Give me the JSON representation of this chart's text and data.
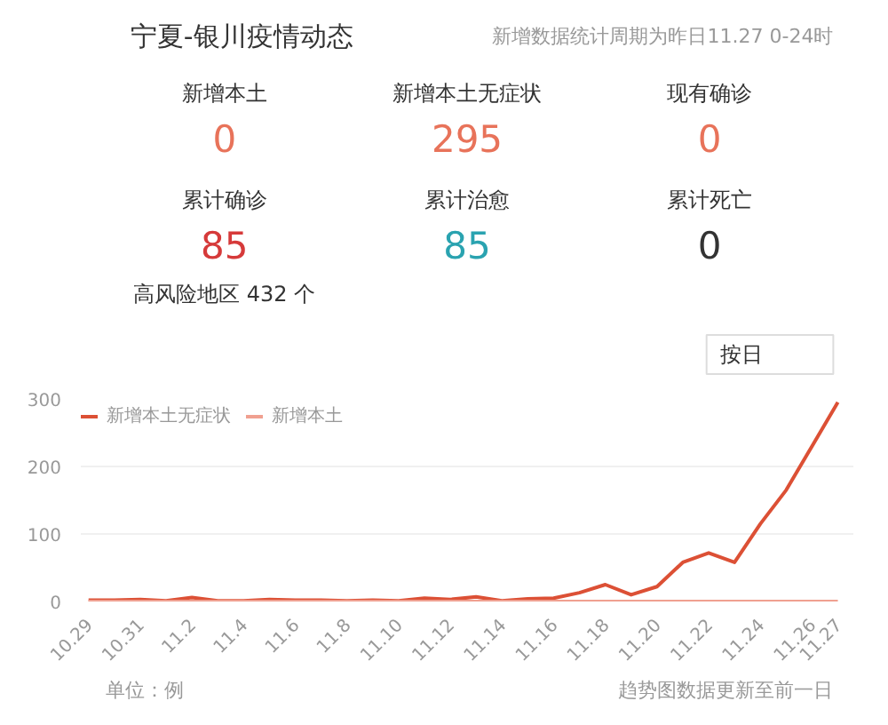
{
  "chart_data": [
    {
      "type": "other",
      "title": "宁夏-银川疫情动态",
      "subtitle": "新增数据统计周期为昨日11.27 0-24时",
      "annotations": [
        "新增本土",
        "0",
        "新增本土无症状",
        "295",
        "现有确诊",
        "0",
        "累计确诊",
        "85",
        "累计治愈",
        "85",
        "累计死亡",
        "0",
        "高风险地区 432 个"
      ]
    },
    {
      "type": "line",
      "categories": [
        "10.29",
        null,
        "10.31",
        null,
        "11.2",
        null,
        "11.4",
        null,
        "11.6",
        null,
        "11.8",
        null,
        "11.10",
        null,
        "11.12",
        null,
        "11.14",
        null,
        "11.16",
        null,
        "11.18",
        null,
        "11.20",
        null,
        "11.22",
        null,
        "11.24",
        null,
        "11.26",
        "11.27"
      ],
      "series": [
        {
          "name": "新增本土无症状",
          "color": "#dc5035",
          "values": [
            2,
            2,
            3,
            1,
            6,
            1,
            1,
            3,
            2,
            2,
            1,
            2,
            1,
            5,
            3,
            7,
            1,
            4,
            5,
            13,
            25,
            10,
            22,
            58,
            72,
            58,
            115,
            165,
            230,
            295
          ]
        },
        {
          "name": "新增本土",
          "color": "#f0a090",
          "values": [
            0,
            0,
            0,
            0,
            0,
            0,
            0,
            0,
            0,
            0,
            0,
            0,
            0,
            0,
            0,
            0,
            0,
            0,
            0,
            0,
            0,
            0,
            0,
            0,
            0,
            0,
            0,
            0,
            0,
            0
          ]
        }
      ],
      "ylim": [
        0,
        300
      ],
      "yticks": [
        0,
        100,
        200,
        300
      ],
      "grid": "y",
      "legend": "top left",
      "annotations": [
        "按日",
        "单位：例",
        "趋势图数据更新至前一日"
      ]
    }
  ]
}
